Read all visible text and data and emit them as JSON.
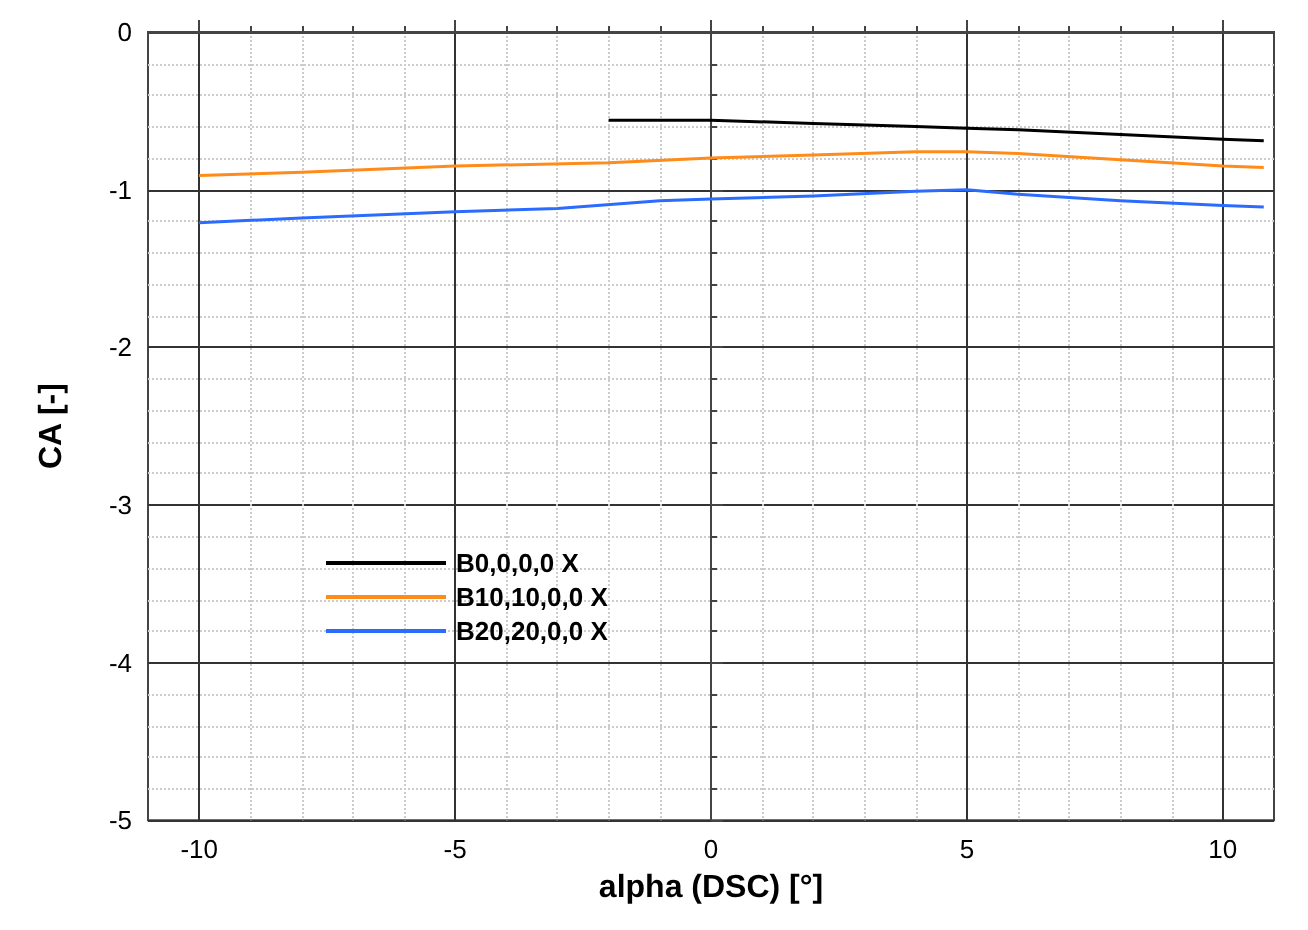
{
  "chart_data": {
    "type": "line",
    "xlabel": "alpha (DSC) [°]",
    "ylabel": "CA [-]",
    "xlim": [
      -11,
      11
    ],
    "xticks": [
      -10,
      -5,
      0,
      5,
      10
    ],
    "ylim": [
      -5,
      0
    ],
    "yticks": [
      -5,
      -4,
      -3,
      -2,
      -1,
      0
    ],
    "grid": true,
    "legend": "center left",
    "marker": "none",
    "line_style": "solid",
    "series": [
      {
        "name": "B0,0,0,0 X",
        "color": "#000000",
        "x": [
          -2,
          0,
          2,
          4,
          5,
          6,
          8,
          10,
          10.8
        ],
        "values": [
          -0.56,
          -0.56,
          -0.58,
          -0.6,
          -0.61,
          -0.62,
          -0.65,
          -0.68,
          -0.69
        ]
      },
      {
        "name": "B10,10,0,0 X",
        "color": "#ff8c1a",
        "x": [
          -10,
          -8,
          -5,
          -2,
          0,
          2,
          4,
          5,
          6,
          8,
          10,
          10.8
        ],
        "values": [
          -0.91,
          -0.89,
          -0.85,
          -0.83,
          -0.8,
          -0.78,
          -0.76,
          -0.76,
          -0.77,
          -0.81,
          -0.85,
          -0.86
        ]
      },
      {
        "name": "B20,20,0,0 X",
        "color": "#2b6cff",
        "x": [
          -10,
          -8,
          -5,
          -3,
          -1,
          0,
          2,
          4,
          5,
          6,
          8,
          10,
          10.8
        ],
        "values": [
          -1.21,
          -1.18,
          -1.14,
          -1.12,
          -1.07,
          -1.06,
          -1.04,
          -1.01,
          -1.0,
          -1.03,
          -1.07,
          -1.1,
          -1.11
        ]
      }
    ]
  }
}
